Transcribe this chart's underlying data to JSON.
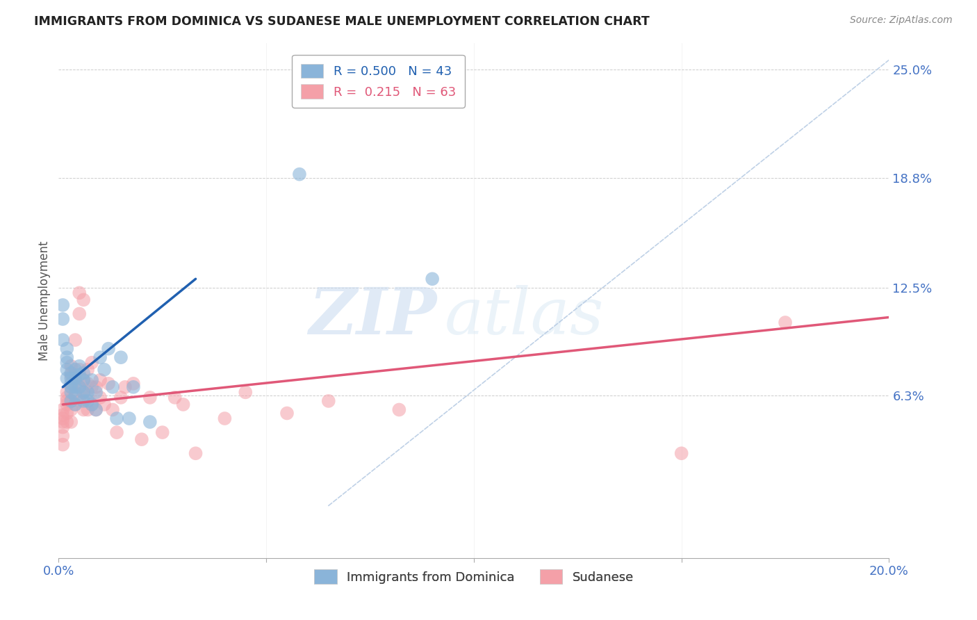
{
  "title": "IMMIGRANTS FROM DOMINICA VS SUDANESE MALE UNEMPLOYMENT CORRELATION CHART",
  "source": "Source: ZipAtlas.com",
  "ylabel_label": "Male Unemployment",
  "xlim": [
    0.0,
    0.2
  ],
  "ylim": [
    -0.03,
    0.265
  ],
  "ytick_positions": [
    0.063,
    0.125,
    0.188,
    0.25
  ],
  "ytick_labels": [
    "6.3%",
    "12.5%",
    "18.8%",
    "25.0%"
  ],
  "xtick_positions": [
    0.0,
    0.05,
    0.1,
    0.15,
    0.2
  ],
  "xtick_labels": [
    "0.0%",
    "",
    "",
    "",
    "20.0%"
  ],
  "legend1_r": "0.500",
  "legend1_n": "43",
  "legend2_r": "0.215",
  "legend2_n": "63",
  "blue_color": "#8ab4d9",
  "pink_color": "#f4a0a8",
  "trend_blue": "#2060b0",
  "trend_pink": "#e05878",
  "trend_dashed_color": "#b8cce4",
  "watermark_zip": "ZIP",
  "watermark_atlas": "atlas",
  "blue_scatter_x": [
    0.001,
    0.001,
    0.001,
    0.002,
    0.002,
    0.002,
    0.002,
    0.002,
    0.003,
    0.003,
    0.003,
    0.003,
    0.003,
    0.003,
    0.004,
    0.004,
    0.004,
    0.004,
    0.004,
    0.005,
    0.005,
    0.005,
    0.006,
    0.006,
    0.006,
    0.006,
    0.007,
    0.007,
    0.008,
    0.008,
    0.009,
    0.009,
    0.01,
    0.011,
    0.012,
    0.013,
    0.014,
    0.015,
    0.017,
    0.018,
    0.022,
    0.058,
    0.09
  ],
  "blue_scatter_y": [
    0.115,
    0.107,
    0.095,
    0.09,
    0.085,
    0.082,
    0.078,
    0.073,
    0.076,
    0.073,
    0.07,
    0.068,
    0.065,
    0.06,
    0.078,
    0.073,
    0.068,
    0.063,
    0.058,
    0.08,
    0.075,
    0.068,
    0.076,
    0.072,
    0.065,
    0.06,
    0.065,
    0.06,
    0.072,
    0.058,
    0.065,
    0.055,
    0.085,
    0.078,
    0.09,
    0.068,
    0.05,
    0.085,
    0.05,
    0.068,
    0.048,
    0.19,
    0.13
  ],
  "pink_scatter_x": [
    0.001,
    0.001,
    0.001,
    0.001,
    0.001,
    0.001,
    0.001,
    0.002,
    0.002,
    0.002,
    0.002,
    0.002,
    0.002,
    0.003,
    0.003,
    0.003,
    0.003,
    0.003,
    0.003,
    0.004,
    0.004,
    0.004,
    0.004,
    0.005,
    0.005,
    0.005,
    0.005,
    0.005,
    0.006,
    0.006,
    0.006,
    0.006,
    0.007,
    0.007,
    0.007,
    0.007,
    0.008,
    0.008,
    0.008,
    0.009,
    0.009,
    0.01,
    0.01,
    0.011,
    0.012,
    0.013,
    0.014,
    0.015,
    0.016,
    0.018,
    0.02,
    0.022,
    0.025,
    0.028,
    0.03,
    0.033,
    0.04,
    0.045,
    0.055,
    0.065,
    0.082,
    0.15,
    0.175
  ],
  "pink_scatter_y": [
    0.055,
    0.052,
    0.05,
    0.048,
    0.045,
    0.04,
    0.035,
    0.065,
    0.062,
    0.06,
    0.058,
    0.053,
    0.048,
    0.08,
    0.075,
    0.068,
    0.06,
    0.055,
    0.048,
    0.095,
    0.072,
    0.065,
    0.058,
    0.122,
    0.11,
    0.078,
    0.068,
    0.06,
    0.118,
    0.072,
    0.065,
    0.055,
    0.078,
    0.07,
    0.062,
    0.055,
    0.082,
    0.068,
    0.058,
    0.068,
    0.055,
    0.072,
    0.062,
    0.058,
    0.07,
    0.055,
    0.042,
    0.062,
    0.068,
    0.07,
    0.038,
    0.062,
    0.042,
    0.062,
    0.058,
    0.03,
    0.05,
    0.065,
    0.053,
    0.06,
    0.055,
    0.03,
    0.105
  ],
  "blue_trend_x": [
    0.001,
    0.033
  ],
  "blue_trend_y_start": 0.068,
  "blue_trend_y_end": 0.13,
  "pink_trend_x": [
    0.001,
    0.2
  ],
  "pink_trend_y_start": 0.058,
  "pink_trend_y_end": 0.108
}
